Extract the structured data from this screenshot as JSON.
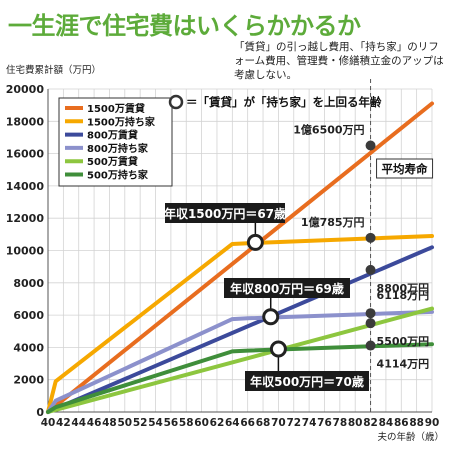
{
  "page": {
    "title": "一生涯で住宅費はいくらかかるか",
    "note": "「賃貸」の引っ越し費用、「持ち家」のリフォーム費用、管理費・修繕積立金のアップは考慮しない。"
  },
  "chart_data": {
    "type": "line",
    "title": "一生涯で住宅費はいくらかかるか",
    "ylabel": "住宅費累計額（万円）",
    "xlabel": "夫の年齢（歳）",
    "xlim": [
      40,
      90
    ],
    "ylim": [
      0,
      20000
    ],
    "x_ticks": [
      40,
      42,
      44,
      46,
      48,
      50,
      52,
      54,
      56,
      58,
      60,
      62,
      64,
      66,
      68,
      70,
      72,
      74,
      76,
      78,
      80,
      82,
      84,
      86,
      88,
      90
    ],
    "y_ticks": [
      0,
      2000,
      4000,
      6000,
      8000,
      10000,
      12000,
      14000,
      16000,
      18000,
      20000
    ],
    "grid": true,
    "legend_position": "top-left",
    "series": [
      {
        "name": "1500万賃貸",
        "color": "#e86d1f",
        "x": [
          40,
          90
        ],
        "y": [
          0,
          19100
        ]
      },
      {
        "name": "1500万持ち家",
        "color": "#f6a800",
        "x": [
          40,
          41,
          64,
          66,
          90
        ],
        "y": [
          0,
          1900,
          10400,
          10450,
          10900
        ]
      },
      {
        "name": "800万賃貸",
        "color": "#3c4a9b",
        "x": [
          40,
          90
        ],
        "y": [
          0,
          10200
        ]
      },
      {
        "name": "800万持ち家",
        "color": "#8c91cc",
        "x": [
          40,
          41,
          64,
          66,
          90
        ],
        "y": [
          0,
          700,
          5750,
          5800,
          6200
        ]
      },
      {
        "name": "500万賃貸",
        "color": "#8dc63f",
        "x": [
          40,
          90
        ],
        "y": [
          0,
          6400
        ]
      },
      {
        "name": "500万持ち家",
        "color": "#3f8e3a",
        "x": [
          40,
          41,
          64,
          66,
          90
        ],
        "y": [
          0,
          300,
          3750,
          3800,
          4200
        ]
      }
    ],
    "vline": {
      "x": 82,
      "label": "平均寿命"
    },
    "point_labels": [
      {
        "x": 82,
        "y": 16500,
        "label": "1億6500万円"
      },
      {
        "x": 82,
        "y": 10785,
        "label": "1億785万円"
      },
      {
        "x": 82,
        "y": 8800,
        "label": "8800万円"
      },
      {
        "x": 82,
        "y": 6118,
        "label": "6118万円"
      },
      {
        "x": 82,
        "y": 5500,
        "label": "5500万円"
      },
      {
        "x": 82,
        "y": 4114,
        "label": "4114万円"
      }
    ],
    "crossovers": [
      {
        "x": 67,
        "y": 10500,
        "label": "年収1500万円＝67歳"
      },
      {
        "x": 69,
        "y": 5900,
        "label": "年収800万円＝69歳"
      },
      {
        "x": 70,
        "y": 3900,
        "label": "年収500万円＝70歳"
      }
    ],
    "crossover_legend": "＝「賃貸」が「持ち家」を上回る年齢"
  }
}
